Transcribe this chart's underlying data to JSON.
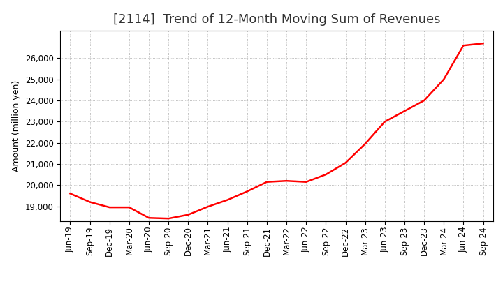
{
  "title": "[2114]  Trend of 12-Month Moving Sum of Revenues",
  "ylabel": "Amount (million yen)",
  "line_color": "#ff0000",
  "background_color": "#ffffff",
  "grid_color": "#aaaaaa",
  "title_color": "#333333",
  "x_labels": [
    "Jun-19",
    "Sep-19",
    "Dec-19",
    "Mar-20",
    "Jun-20",
    "Sep-20",
    "Dec-20",
    "Mar-21",
    "Jun-21",
    "Sep-21",
    "Dec-21",
    "Mar-22",
    "Jun-22",
    "Sep-22",
    "Dec-22",
    "Mar-23",
    "Jun-23",
    "Sep-23",
    "Dec-23",
    "Mar-24",
    "Jun-24",
    "Sep-24"
  ],
  "values": [
    19600,
    19200,
    18950,
    18950,
    18450,
    18420,
    18600,
    18980,
    19300,
    19700,
    20150,
    20200,
    20150,
    20500,
    21050,
    21950,
    23000,
    23500,
    24000,
    25000,
    26600,
    26700
  ],
  "ylim": [
    18300,
    27300
  ],
  "yticks": [
    19000,
    20000,
    21000,
    22000,
    23000,
    24000,
    25000,
    26000
  ],
  "title_fontsize": 13,
  "axis_label_fontsize": 9,
  "tick_fontsize": 8.5
}
